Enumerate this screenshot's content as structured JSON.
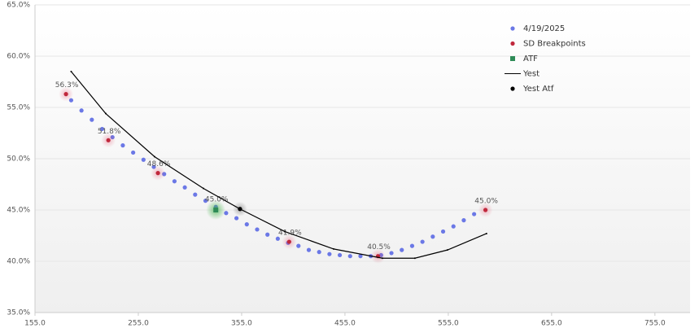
{
  "chart_data": {
    "type": "scatter",
    "xlim": [
      155,
      789
    ],
    "ylim": [
      35,
      65
    ],
    "xticks": [
      {
        "value": 155,
        "label": "155.0"
      },
      {
        "value": 255,
        "label": "255.0"
      },
      {
        "value": 355,
        "label": "355.0"
      },
      {
        "value": 455,
        "label": "455.0"
      },
      {
        "value": 555,
        "label": "555.0"
      },
      {
        "value": 655,
        "label": "655.0"
      },
      {
        "value": 755,
        "label": "755.0"
      }
    ],
    "yticks": [
      {
        "value": 35,
        "label": "35.0%"
      },
      {
        "value": 40,
        "label": "40.0%"
      },
      {
        "value": 45,
        "label": "45.0%"
      },
      {
        "value": 50,
        "label": "50.0%"
      },
      {
        "value": 55,
        "label": "55.0%"
      },
      {
        "value": 60,
        "label": "60.0%"
      },
      {
        "value": 65,
        "label": "65.0%"
      }
    ],
    "grid": true,
    "legend": "top-right",
    "series": [
      {
        "name": "4/19/2025",
        "kind": "dots",
        "color": "#6b78e6",
        "x": [
          190,
          200,
          210,
          220,
          230,
          240,
          250,
          260,
          270,
          280,
          290,
          300,
          310,
          320,
          330,
          340,
          350,
          360,
          370,
          380,
          390,
          400,
          410,
          420,
          430,
          440,
          450,
          460,
          470,
          480,
          490,
          500,
          510,
          520,
          530,
          540,
          550,
          560,
          570,
          580
        ],
        "values": [
          55.7,
          54.7,
          53.8,
          52.9,
          52.1,
          51.3,
          50.6,
          49.9,
          49.2,
          48.5,
          47.8,
          47.2,
          46.5,
          45.9,
          45.3,
          44.7,
          44.2,
          43.6,
          43.1,
          42.6,
          42.2,
          41.8,
          41.5,
          41.1,
          40.9,
          40.7,
          40.6,
          40.5,
          40.5,
          40.5,
          40.6,
          40.8,
          41.1,
          41.5,
          41.9,
          42.4,
          42.9,
          43.4,
          44.0,
          44.6
        ]
      },
      {
        "name": "SD Breakpoints",
        "kind": "points",
        "color": "#c0283c",
        "x": [
          185,
          226,
          274,
          401,
          487,
          591
        ],
        "values": [
          56.3,
          51.8,
          48.6,
          41.9,
          40.5,
          45.0
        ],
        "value_labels": [
          "56.3%",
          "51.8%",
          "48.6%",
          "41.9%",
          "40.5%",
          "45.0%"
        ]
      },
      {
        "name": "ATF",
        "kind": "glow",
        "color": "#2e8b57",
        "x": [
          330
        ],
        "values": [
          45.0
        ],
        "value_labels": [
          "45.0%"
        ]
      },
      {
        "name": "Yest",
        "kind": "line",
        "color": "#000000",
        "x": [
          190,
          223.5,
          270.7,
          318,
          353.4,
          396.7,
          444,
          491.2,
          522.7,
          554.2,
          592
        ],
        "values": [
          58.5,
          54.4,
          50.2,
          47.1,
          45.1,
          42.9,
          41.2,
          40.3,
          40.3,
          41.1,
          42.7
        ]
      },
      {
        "name": "Yest Atf",
        "kind": "points",
        "color": "#000000",
        "x": [
          353.4
        ],
        "values": [
          45.1
        ]
      }
    ]
  }
}
